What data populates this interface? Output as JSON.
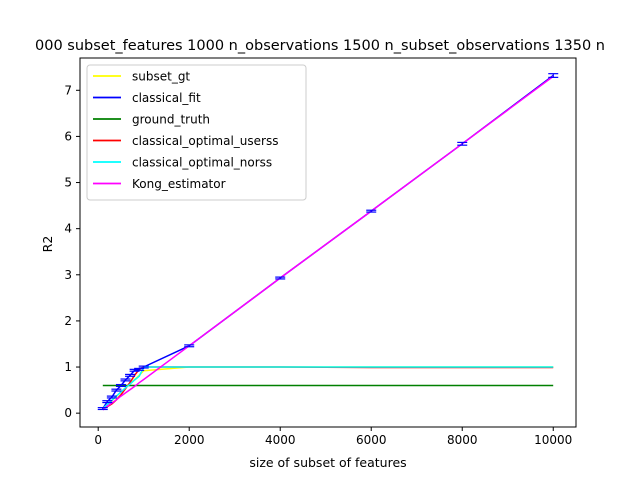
{
  "chart_data": {
    "type": "line",
    "title": "000 subset_features 1000 n_observations 1500 n_subset_observations 1350 n",
    "xlabel": "size of subset of features",
    "ylabel": "R2",
    "xlim": [
      -400,
      10500
    ],
    "ylim": [
      -0.3,
      7.7
    ],
    "xticks": [
      0,
      2000,
      4000,
      6000,
      8000,
      10000
    ],
    "yticks": [
      0,
      1,
      2,
      3,
      4,
      5,
      6,
      7
    ],
    "grid": false,
    "legend_position": "top-left",
    "x": [
      100,
      200,
      300,
      400,
      500,
      600,
      700,
      800,
      900,
      1000,
      2000,
      4000,
      6000,
      8000,
      10000
    ],
    "series": [
      {
        "name": "subset_gt",
        "color": "#ffff00",
        "values": [
          0.1,
          0.18,
          0.27,
          0.36,
          0.46,
          0.55,
          0.64,
          0.73,
          0.82,
          0.92,
          1.0,
          1.0,
          1.0,
          1.0,
          1.0
        ]
      },
      {
        "name": "classical_fit",
        "color": "#0000ff",
        "values": [
          0.1,
          0.25,
          0.35,
          0.5,
          0.6,
          0.72,
          0.82,
          0.93,
          0.95,
          1.0,
          1.46,
          2.93,
          4.38,
          5.84,
          7.32
        ]
      },
      {
        "name": "ground_truth",
        "color": "#008000",
        "values": [
          0.6,
          0.6,
          0.6,
          0.6,
          0.6,
          0.6,
          0.6,
          0.6,
          0.6,
          0.6,
          0.6,
          0.6,
          0.6,
          0.6,
          0.6
        ]
      },
      {
        "name": "classical_optimal_userss",
        "color": "#ff0000",
        "values": [
          0.12,
          0.14,
          0.2,
          0.29,
          0.4,
          0.53,
          0.67,
          0.82,
          0.95,
          1.0,
          1.0,
          1.0,
          0.99,
          0.99,
          0.99
        ]
      },
      {
        "name": "classical_optimal_norss",
        "color": "#00ffff",
        "values": [
          0.1,
          0.19,
          0.28,
          0.37,
          0.46,
          0.55,
          0.63,
          0.72,
          0.8,
          1.0,
          1.0,
          1.0,
          1.0,
          1.0,
          1.0
        ]
      },
      {
        "name": "Kong_estimator",
        "color": "#ff00ff",
        "values": [
          0.07,
          0.15,
          0.22,
          0.29,
          0.37,
          0.44,
          0.51,
          0.58,
          0.66,
          0.73,
          1.46,
          2.93,
          4.38,
          5.84,
          7.3
        ]
      }
    ],
    "error_bars": {
      "series": "classical_fit",
      "x": [
        100,
        200,
        300,
        400,
        500,
        600,
        700,
        800,
        900,
        1000,
        2000,
        4000,
        6000,
        8000,
        10000
      ],
      "y": [
        0.1,
        0.25,
        0.35,
        0.5,
        0.6,
        0.72,
        0.82,
        0.93,
        0.95,
        1.0,
        1.46,
        2.93,
        4.38,
        5.84,
        7.32
      ],
      "err": [
        0.02,
        0.02,
        0.02,
        0.02,
        0.02,
        0.02,
        0.02,
        0.02,
        0.02,
        0.02,
        0.02,
        0.02,
        0.02,
        0.03,
        0.04
      ]
    }
  }
}
